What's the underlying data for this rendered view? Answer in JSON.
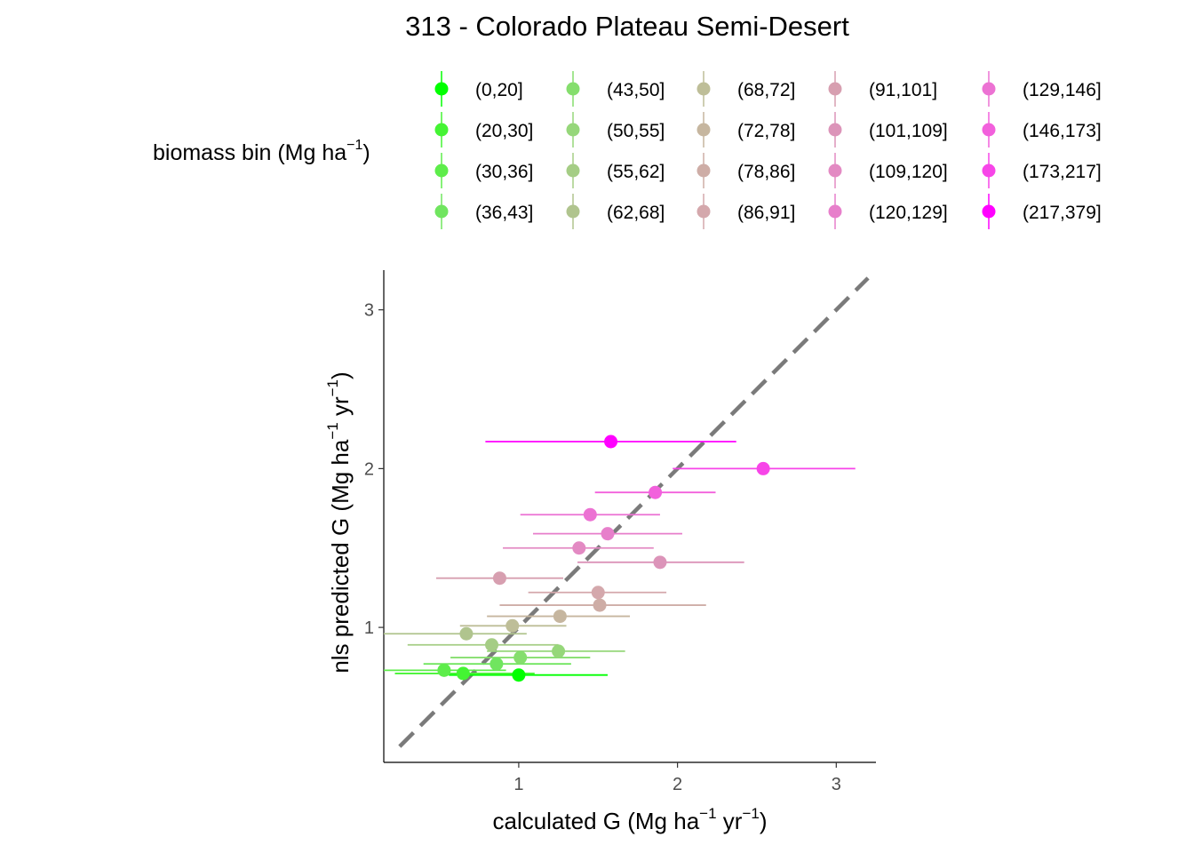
{
  "chart_data": {
    "type": "scatter",
    "title": "313 - Colorado Plateau Semi-Desert",
    "xlabel": {
      "prefix": "calculated G (Mg ha",
      "exp1": "−1",
      "mid": " yr",
      "exp2": "−1",
      "suffix": ")"
    },
    "ylabel": {
      "prefix": "nls predicted G (Mg ha",
      "exp1": "−1",
      "mid": " yr",
      "exp2": "−1",
      "suffix": ")"
    },
    "legend": {
      "title": {
        "prefix": "biomass bin (Mg ha",
        "exp": "−1",
        "suffix": ")"
      },
      "placement": "top"
    },
    "xlim": [
      0.15,
      3.25
    ],
    "ylim": [
      0.15,
      3.25
    ],
    "x_ticks": [
      1,
      2,
      3
    ],
    "y_ticks": [
      1,
      2,
      3
    ],
    "x_tick_labels": [
      "1",
      "2",
      "3"
    ],
    "y_tick_labels": [
      "1",
      "2",
      "3"
    ],
    "grid": false,
    "reference_line": {
      "type": "1:1",
      "style": "dashed",
      "color": "#7a7a7a",
      "x_range": [
        0.25,
        3.2
      ]
    },
    "series": [
      {
        "name": "(0,20]",
        "color": "#00ff00",
        "x": 1.0,
        "y": 0.7,
        "xmin": 0.56,
        "xmax": 1.56
      },
      {
        "name": "(20,30]",
        "color": "#44f433",
        "x": 0.65,
        "y": 0.71,
        "xmin": 0.22,
        "xmax": 1.1
      },
      {
        "name": "(30,36]",
        "color": "#5ded4a",
        "x": 0.53,
        "y": 0.73,
        "xmin": 0.15,
        "xmax": 0.92
      },
      {
        "name": "(36,43]",
        "color": "#70e55f",
        "x": 0.86,
        "y": 0.77,
        "xmin": 0.4,
        "xmax": 1.33
      },
      {
        "name": "(43,50]",
        "color": "#85de6d",
        "x": 1.01,
        "y": 0.81,
        "xmin": 0.57,
        "xmax": 1.45
      },
      {
        "name": "(50,55]",
        "color": "#96d77a",
        "x": 1.25,
        "y": 0.85,
        "xmin": 0.8,
        "xmax": 1.67
      },
      {
        "name": "(55,62]",
        "color": "#a5cd85",
        "x": 0.83,
        "y": 0.89,
        "xmin": 0.3,
        "xmax": 1.25
      },
      {
        "name": "(62,68]",
        "color": "#b0c48e",
        "x": 0.67,
        "y": 0.96,
        "xmin": 0.15,
        "xmax": 1.05
      },
      {
        "name": "(68,72]",
        "color": "#bebe98",
        "x": 0.96,
        "y": 1.01,
        "xmin": 0.63,
        "xmax": 1.3
      },
      {
        "name": "(72,78]",
        "color": "#c6b69f",
        "x": 1.26,
        "y": 1.07,
        "xmin": 0.8,
        "xmax": 1.7
      },
      {
        "name": "(78,86]",
        "color": "#ceada6",
        "x": 1.51,
        "y": 1.14,
        "xmin": 0.88,
        "xmax": 2.18
      },
      {
        "name": "(86,91]",
        "color": "#d4a8ac",
        "x": 1.5,
        "y": 1.22,
        "xmin": 1.06,
        "xmax": 1.93
      },
      {
        "name": "(91,101]",
        "color": "#d79fb0",
        "x": 0.88,
        "y": 1.31,
        "xmin": 0.48,
        "xmax": 1.28
      },
      {
        "name": "(101,109]",
        "color": "#dc94b9",
        "x": 1.89,
        "y": 1.41,
        "xmin": 1.37,
        "xmax": 2.42
      },
      {
        "name": "(109,120]",
        "color": "#e38ac3",
        "x": 1.38,
        "y": 1.5,
        "xmin": 0.9,
        "xmax": 1.85
      },
      {
        "name": "(120,129]",
        "color": "#e77fcb",
        "x": 1.56,
        "y": 1.59,
        "xmin": 1.09,
        "xmax": 2.03
      },
      {
        "name": "(129,146]",
        "color": "#ec72d3",
        "x": 1.45,
        "y": 1.71,
        "xmin": 1.01,
        "xmax": 1.89
      },
      {
        "name": "(146,173]",
        "color": "#f260dc",
        "x": 1.86,
        "y": 1.85,
        "xmin": 1.48,
        "xmax": 2.24
      },
      {
        "name": "(173,217]",
        "color": "#f745e8",
        "x": 2.54,
        "y": 2.0,
        "xmin": 1.97,
        "xmax": 3.12
      },
      {
        "name": "(217,379]",
        "color": "#ff00ff",
        "x": 1.58,
        "y": 2.17,
        "xmin": 0.79,
        "xmax": 2.37
      }
    ]
  }
}
